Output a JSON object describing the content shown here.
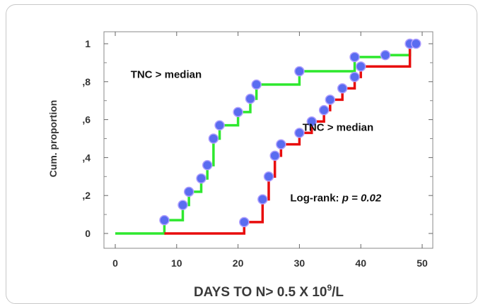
{
  "chart_data": {
    "type": "line",
    "step": true,
    "xlabel_main": "DAYS TO N> 0.5 X 10",
    "xlabel_sup": "9",
    "xlabel_tail": "/L",
    "ylabel": "Cum. proportion",
    "xlim": [
      0,
      50
    ],
    "ylim": [
      0,
      1
    ],
    "x_ticks": [
      "0",
      "10",
      "20",
      "30",
      "40",
      "50"
    ],
    "y_ticks": [
      "0",
      ",2",
      ",4",
      ",6",
      ",8",
      "1"
    ],
    "grid": false,
    "colors": {
      "green": "#2ee82e",
      "red": "#e80d0d",
      "marker": "#5a6cf0",
      "marker_edge": "#b0a0ff"
    },
    "series": [
      {
        "color_key": "green",
        "start": [
          0,
          0
        ],
        "points": [
          [
            8,
            0.07
          ],
          [
            11,
            0.15
          ],
          [
            12,
            0.22
          ],
          [
            14,
            0.29
          ],
          [
            15,
            0.36
          ],
          [
            16,
            0.5
          ],
          [
            17,
            0.57
          ],
          [
            20,
            0.64
          ],
          [
            22,
            0.71
          ],
          [
            23,
            0.785
          ],
          [
            30,
            0.855
          ],
          [
            39,
            0.93
          ],
          [
            44,
            0.94
          ],
          [
            48,
            1.0
          ]
        ],
        "end_x": 49
      },
      {
        "color_key": "red",
        "start": [
          8,
          0
        ],
        "points": [
          [
            21,
            0.06
          ],
          [
            24,
            0.18
          ],
          [
            25,
            0.3
          ],
          [
            26,
            0.41
          ],
          [
            27,
            0.47
          ],
          [
            30,
            0.53
          ],
          [
            32,
            0.59
          ],
          [
            34,
            0.65
          ],
          [
            35,
            0.705
          ],
          [
            37,
            0.765
          ],
          [
            39,
            0.825
          ],
          [
            40,
            0.88
          ],
          [
            48,
            1.0
          ],
          [
            49,
            1.0
          ]
        ],
        "end_x": 49
      }
    ],
    "annotations": [
      {
        "text": "TNC > median",
        "x": 2.5,
        "y": 0.82
      },
      {
        "text": "TNC > median",
        "x": 30.5,
        "y": 0.54
      }
    ],
    "logrank_prefix": "Log-rank: ",
    "logrank_p": "p = 0.02",
    "logrank_pos": [
      28.5,
      0.17
    ]
  }
}
